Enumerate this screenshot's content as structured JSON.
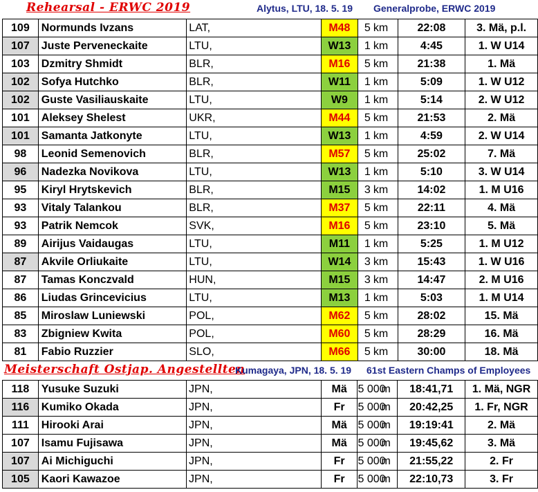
{
  "section1": {
    "title": "Rehearsal - ERWC 2019",
    "place": "Alytus, LTU,  18. 5. 19",
    "event": "Generalprobe, ERWC 2019",
    "rows": [
      {
        "pts": "109",
        "shade": false,
        "name": "Normunds Ivzans",
        "nat": "LAT,",
        "cls": "M48",
        "color": "yellow",
        "dist": "5",
        "unit": "km",
        "time": "22:08",
        "rank": "3. Mä, p.l."
      },
      {
        "pts": "107",
        "shade": true,
        "name": "Juste Perveneckaite",
        "nat": "LTU,",
        "cls": "W13",
        "color": "green",
        "dist": "1",
        "unit": "km",
        "time": "4:45",
        "rank": "1. W U14"
      },
      {
        "pts": "103",
        "shade": false,
        "name": "Dzmitry Shmidt",
        "nat": "BLR,",
        "cls": "M16",
        "color": "yellow",
        "dist": "5",
        "unit": "km",
        "time": "21:38",
        "rank": "1. Mä"
      },
      {
        "pts": "102",
        "shade": true,
        "name": "Sofya Hutchko",
        "nat": "BLR,",
        "cls": "W11",
        "color": "green",
        "dist": "1",
        "unit": "km",
        "time": "5:09",
        "rank": "1. W U12"
      },
      {
        "pts": "102",
        "shade": true,
        "name": "Guste Vasiliauskaite",
        "nat": "LTU,",
        "cls": "W9",
        "color": "green",
        "dist": "1",
        "unit": "km",
        "time": "5:14",
        "rank": "2. W U12"
      },
      {
        "pts": "101",
        "shade": false,
        "name": "Aleksey Shelest",
        "nat": "UKR,",
        "cls": "M44",
        "color": "yellow",
        "dist": "5",
        "unit": "km",
        "time": "21:53",
        "rank": "2. Mä"
      },
      {
        "pts": "101",
        "shade": true,
        "name": "Samanta Jatkonyte",
        "nat": "LTU,",
        "cls": "W13",
        "color": "green",
        "dist": "1",
        "unit": "km",
        "time": "4:59",
        "rank": "2. W U14"
      },
      {
        "pts": "98",
        "shade": false,
        "name": "Leonid Semenovich",
        "nat": "BLR,",
        "cls": "M57",
        "color": "yellow",
        "dist": "5",
        "unit": "km",
        "time": "25:02",
        "rank": "7. Mä"
      },
      {
        "pts": "96",
        "shade": true,
        "name": "Nadezka Novikova",
        "nat": "LTU,",
        "cls": "W13",
        "color": "green",
        "dist": "1",
        "unit": "km",
        "time": "5:10",
        "rank": "3. W U14"
      },
      {
        "pts": "95",
        "shade": false,
        "name": "Kiryl Hrytskevich",
        "nat": "BLR,",
        "cls": "M15",
        "color": "green",
        "dist": "3",
        "unit": "km",
        "time": "14:02",
        "rank": "1. M U16"
      },
      {
        "pts": "93",
        "shade": false,
        "name": "Vitaly Talankou",
        "nat": "BLR,",
        "cls": "M37",
        "color": "yellow",
        "dist": "5",
        "unit": "km",
        "time": "22:11",
        "rank": "4. Mä"
      },
      {
        "pts": "93",
        "shade": false,
        "name": "Patrik Nemcok",
        "nat": "SVK,",
        "cls": "M16",
        "color": "yellow",
        "dist": "5",
        "unit": "km",
        "time": "23:10",
        "rank": "5. Mä"
      },
      {
        "pts": "89",
        "shade": false,
        "name": "Airijus Vaidaugas",
        "nat": "LTU,",
        "cls": "M11",
        "color": "green",
        "dist": "1",
        "unit": "km",
        "time": "5:25",
        "rank": "1. M U12"
      },
      {
        "pts": "87",
        "shade": true,
        "name": "Akvile Orliukaite",
        "nat": "LTU,",
        "cls": "W14",
        "color": "green",
        "dist": "3",
        "unit": "km",
        "time": "15:43",
        "rank": "1. W U16"
      },
      {
        "pts": "87",
        "shade": false,
        "name": "Tamas Konczvald",
        "nat": "HUN,",
        "cls": "M15",
        "color": "green",
        "dist": "3",
        "unit": "km",
        "time": "14:47",
        "rank": "2. M U16"
      },
      {
        "pts": "86",
        "shade": false,
        "name": "Liudas Grincevicius",
        "nat": "LTU,",
        "cls": "M13",
        "color": "green",
        "dist": "1",
        "unit": "km",
        "time": "5:03",
        "rank": "1. M U14"
      },
      {
        "pts": "85",
        "shade": false,
        "name": "Miroslaw Luniewski",
        "nat": "POL,",
        "cls": "M62",
        "color": "yellow",
        "dist": "5",
        "unit": "km",
        "time": "28:02",
        "rank": "15. Mä"
      },
      {
        "pts": "83",
        "shade": false,
        "name": "Zbigniew Kwita",
        "nat": "POL,",
        "cls": "M60",
        "color": "yellow",
        "dist": "5",
        "unit": "km",
        "time": "28:29",
        "rank": "16. Mä"
      },
      {
        "pts": "81",
        "shade": false,
        "name": "Fabio Ruzzier",
        "nat": "SLO,",
        "cls": "M66",
        "color": "yellow",
        "dist": "5",
        "unit": "km",
        "time": "30:00",
        "rank": "18. Mä"
      }
    ]
  },
  "section2": {
    "title": "Meisterschaft Ostjap. Angestellten",
    "place": "Kumagaya, JPN,  18. 5. 19",
    "event": "61st Eastern Champs of Employees",
    "rows": [
      {
        "pts": "118",
        "shade": false,
        "name": "Yusuke Suzuki",
        "nat": "JPN,",
        "cls": "Mä",
        "dist": "5 000",
        "unit": "m",
        "time": "18:41,71",
        "rank": "1. Mä, NGR"
      },
      {
        "pts": "116",
        "shade": true,
        "name": "Kumiko Okada",
        "nat": "JPN,",
        "cls": "Fr",
        "dist": "5 000",
        "unit": "m",
        "time": "20:42,25",
        "rank": "1. Fr, NGR"
      },
      {
        "pts": "111",
        "shade": false,
        "name": "Hirooki Arai",
        "nat": "JPN,",
        "cls": "Mä",
        "dist": "5 000",
        "unit": "m",
        "time": "19:19:41",
        "rank": "2. Mä"
      },
      {
        "pts": "107",
        "shade": false,
        "name": "Isamu Fujisawa",
        "nat": "JPN,",
        "cls": "Mä",
        "dist": "5 000",
        "unit": "m",
        "time": "19:45,62",
        "rank": "3. Mä"
      },
      {
        "pts": "107",
        "shade": true,
        "name": "Ai Michiguchi",
        "nat": "JPN,",
        "cls": "Fr",
        "dist": "5 000",
        "unit": "m",
        "time": "21:55,22",
        "rank": "2. Fr"
      },
      {
        "pts": "105",
        "shade": true,
        "name": "Kaori Kawazoe",
        "nat": "JPN,",
        "cls": "Fr",
        "dist": "5 000",
        "unit": "m",
        "time": "22:10,73",
        "rank": "3. Fr"
      }
    ]
  }
}
